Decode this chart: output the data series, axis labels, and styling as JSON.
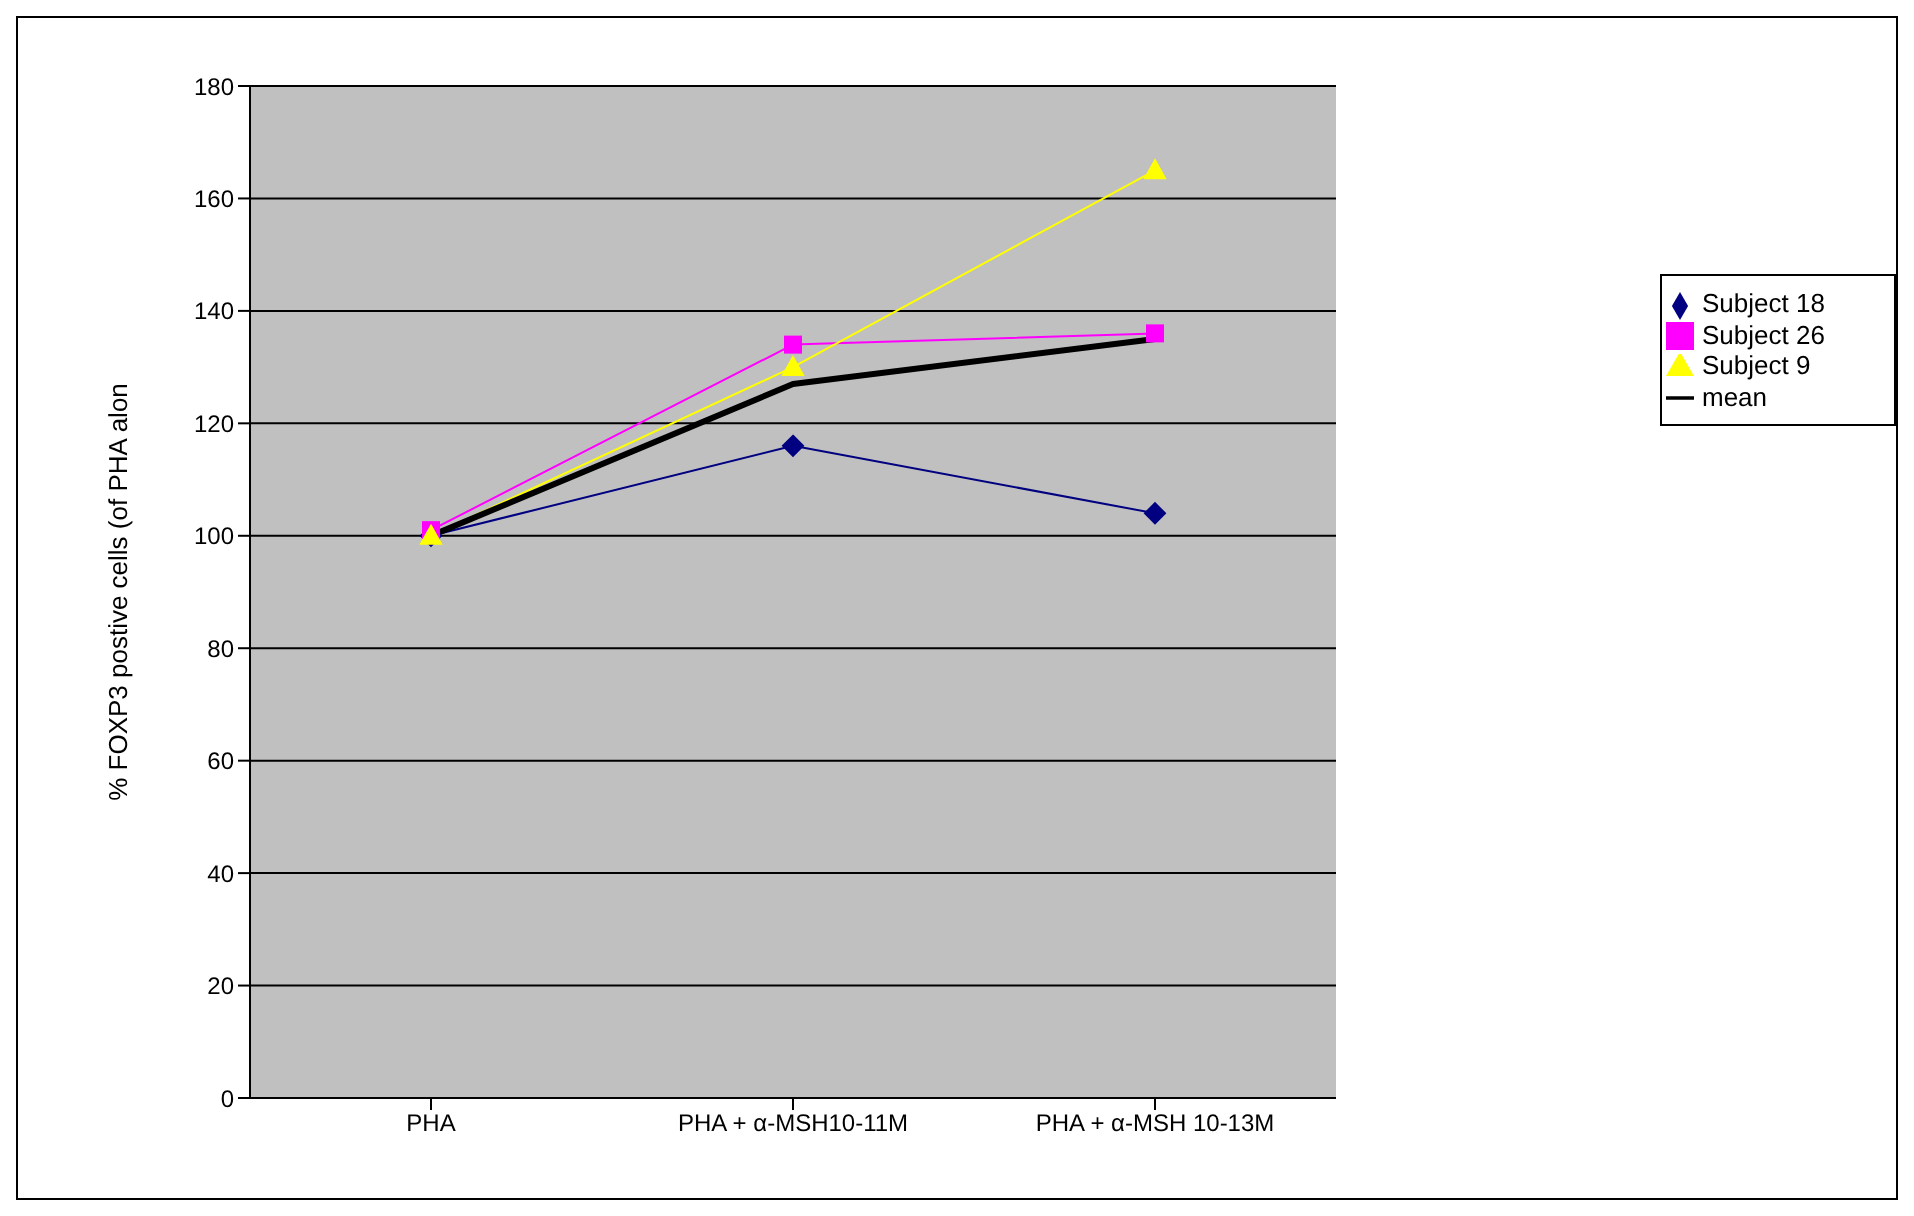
{
  "chart_data": {
    "type": "line",
    "ylabel": "% FOXP3 postive cells (of PHA alon",
    "categories": [
      "PHA",
      "PHA + α-MSH10-11M",
      "PHA + α-MSH 10-13M"
    ],
    "series": [
      {
        "name": "Subject 18",
        "color": "#000080",
        "values": [
          100,
          116,
          104
        ],
        "marker": "diamond"
      },
      {
        "name": "Subject 26",
        "color": "#ff00ff",
        "values": [
          101,
          134,
          136
        ],
        "marker": "square"
      },
      {
        "name": "Subject 9",
        "color": "#ffff00",
        "values": [
          100,
          130,
          165
        ],
        "marker": "triangle"
      },
      {
        "name": "mean",
        "color": "#000000",
        "values": [
          100,
          127,
          135
        ],
        "marker": "none"
      }
    ],
    "ylim": [
      0,
      180
    ],
    "yticks": [
      0,
      20,
      40,
      60,
      80,
      100,
      120,
      140,
      160,
      180
    ],
    "grid": "y",
    "legend": "right",
    "line_style": "solid"
  }
}
